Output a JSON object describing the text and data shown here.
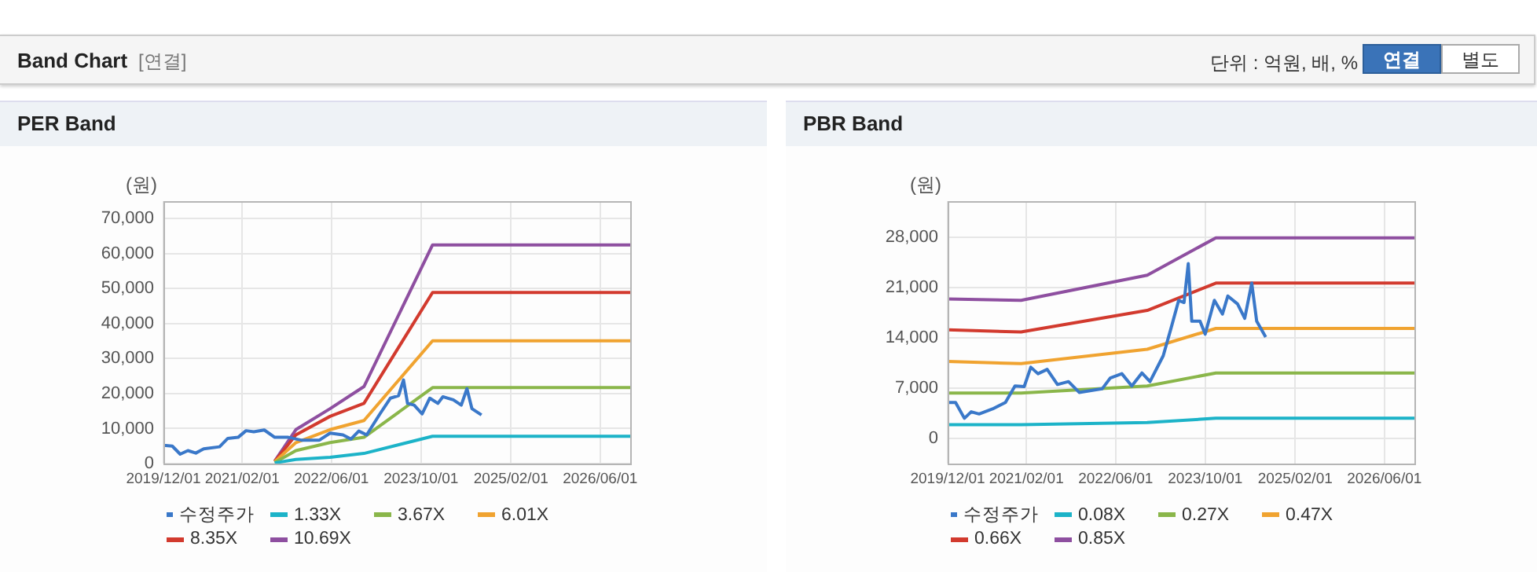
{
  "chart_data": [
    {
      "type": "other",
      "title": "Band Chart",
      "annotations": [
        "[연결]",
        "단위 : 억원, 배, %",
        "연결",
        "별도"
      ]
    },
    {
      "type": "line",
      "title": "PER Band",
      "ylabel": "(원)",
      "xlim": [
        "2019-12-01",
        "2026-11-20"
      ],
      "ylim": [
        0,
        75000
      ],
      "xticks": [
        {
          "value": "2019-12-01",
          "label": "2019/12/01"
        },
        {
          "value": "2021-02-01",
          "label": "2021/02/01"
        },
        {
          "value": "2022-06-01",
          "label": "2022/06/01"
        },
        {
          "value": "2023-10-01",
          "label": "2023/10/01"
        },
        {
          "value": "2025-02-01",
          "label": "2025/02/01"
        },
        {
          "value": "2026-06-01",
          "label": "2026/06/01"
        }
      ],
      "yticks": [
        0,
        {
          "value": 10000,
          "label": "10,000"
        },
        {
          "value": 20000,
          "label": "20,000"
        },
        {
          "value": 30000,
          "label": "30,000"
        },
        {
          "value": 40000,
          "label": "40,000"
        },
        {
          "value": 50000,
          "label": "50,000"
        },
        {
          "value": 60000,
          "label": "60,000"
        },
        {
          "value": 70000,
          "label": "70,000"
        }
      ],
      "grid": true,
      "legend": "bottom",
      "marker": "none",
      "line_style": "solid",
      "series": [
        {
          "name": "수정주가",
          "color": "#3a78c9",
          "x": [
            "2019-12-01",
            "2020-01-18",
            "2020-03-01",
            "2020-04-12",
            "2020-05-25",
            "2020-07-07",
            "2020-10-01",
            "2020-11-15",
            "2021-01-10",
            "2021-02-22",
            "2021-04-05",
            "2021-06-01",
            "2021-07-28",
            "2021-10-10",
            "2021-12-18",
            "2022-03-28",
            "2022-05-25",
            "2022-08-03",
            "2022-09-15",
            "2022-10-28",
            "2022-12-10",
            "2023-02-20",
            "2023-04-18",
            "2023-06-01",
            "2023-06-28",
            "2023-07-20",
            "2023-08-25",
            "2023-10-07",
            "2023-11-18",
            "2024-01-01",
            "2024-01-28",
            "2024-03-25",
            "2024-05-07",
            "2024-06-07",
            "2024-07-04",
            "2024-08-25"
          ],
          "values": [
            5200,
            5000,
            2700,
            3700,
            3000,
            4200,
            4800,
            7200,
            7500,
            9400,
            9100,
            9600,
            7500,
            7500,
            6700,
            6700,
            8700,
            8200,
            7000,
            9300,
            8200,
            14200,
            18700,
            19400,
            23900,
            17200,
            16700,
            14200,
            18700,
            17200,
            19100,
            18200,
            16700,
            21400,
            15700,
            13900
          ]
        },
        {
          "name": "1.33X",
          "color": "#1cb3c8",
          "x": [
            "2021-07-28",
            "2021-11-20",
            "2022-05-25",
            "2022-11-25",
            "2023-12-03",
            "2026-11-20"
          ],
          "values": [
            200,
            1200,
            1800,
            2900,
            7800,
            7800
          ]
        },
        {
          "name": "3.67X",
          "color": "#8ab64a",
          "x": [
            "2021-07-28",
            "2021-11-20",
            "2022-05-25",
            "2022-11-25",
            "2023-12-03",
            "2026-11-20"
          ],
          "values": [
            300,
            3700,
            6000,
            7500,
            21700,
            21700
          ]
        },
        {
          "name": "6.01X",
          "color": "#f0a330",
          "x": [
            "2021-07-28",
            "2021-11-20",
            "2022-05-25",
            "2022-11-25",
            "2023-12-03",
            "2026-11-20"
          ],
          "values": [
            500,
            6000,
            9700,
            12300,
            35100,
            35100
          ]
        },
        {
          "name": "8.35X",
          "color": "#d23a2e",
          "x": [
            "2021-07-28",
            "2021-11-20",
            "2022-05-25",
            "2022-11-25",
            "2023-12-03",
            "2026-11-20"
          ],
          "values": [
            600,
            8200,
            13500,
            17200,
            48900,
            48900
          ]
        },
        {
          "name": "10.69X",
          "color": "#8e4fa0",
          "x": [
            "2021-07-28",
            "2021-11-20",
            "2022-05-25",
            "2022-11-25",
            "2023-12-03",
            "2026-11-20"
          ],
          "values": [
            700,
            9700,
            15700,
            22000,
            62500,
            62500
          ]
        }
      ]
    },
    {
      "type": "line",
      "title": "PBR Band",
      "ylabel": "(원)",
      "xlim": [
        "2019-12-01",
        "2026-11-20"
      ],
      "ylim": [
        -3500,
        33000
      ],
      "xticks": [
        {
          "value": "2019-12-01",
          "label": "2019/12/01"
        },
        {
          "value": "2021-02-01",
          "label": "2021/02/01"
        },
        {
          "value": "2022-06-01",
          "label": "2022/06/01"
        },
        {
          "value": "2023-10-01",
          "label": "2023/10/01"
        },
        {
          "value": "2025-02-01",
          "label": "2025/02/01"
        },
        {
          "value": "2026-06-01",
          "label": "2026/06/01"
        }
      ],
      "yticks": [
        0,
        {
          "value": 7000,
          "label": "7,000"
        },
        {
          "value": 14000,
          "label": "14,000"
        },
        {
          "value": 21000,
          "label": "21,000"
        },
        {
          "value": 28000,
          "label": "28,000"
        }
      ],
      "grid": true,
      "legend": "bottom",
      "marker": "none",
      "line_style": "solid",
      "series": [
        {
          "name": "수정주가",
          "color": "#3a78c9",
          "x": [
            "2019-12-01",
            "2020-01-13",
            "2020-03-01",
            "2020-04-07",
            "2020-05-20",
            "2020-08-01",
            "2020-10-10",
            "2020-12-01",
            "2021-01-20",
            "2021-02-25",
            "2021-04-05",
            "2021-05-25",
            "2021-07-20",
            "2021-09-18",
            "2021-11-15",
            "2022-03-20",
            "2022-05-03",
            "2022-07-05",
            "2022-08-28",
            "2022-10-22",
            "2022-12-05",
            "2023-02-15",
            "2023-03-28",
            "2023-05-10",
            "2023-06-08",
            "2023-07-01",
            "2023-07-20",
            "2023-09-03",
            "2023-10-01",
            "2023-11-20",
            "2024-01-03",
            "2024-02-01",
            "2024-03-25",
            "2024-05-03",
            "2024-06-10",
            "2024-07-07",
            "2024-08-25"
          ],
          "values": [
            5000,
            5000,
            2800,
            3700,
            3400,
            4100,
            5000,
            7300,
            7200,
            9900,
            9000,
            9600,
            7500,
            7900,
            6400,
            6900,
            8400,
            9000,
            7300,
            9100,
            7900,
            11500,
            15200,
            19200,
            18900,
            24300,
            16300,
            16300,
            14500,
            19200,
            17300,
            19800,
            18700,
            16700,
            21600,
            16300,
            14100
          ]
        },
        {
          "name": "0.08X",
          "color": "#1cb3c8",
          "x": [
            "2019-12-01",
            "2021-01-03",
            "2022-11-20",
            "2023-11-28",
            "2026-11-20"
          ],
          "values": [
            1900,
            1900,
            2200,
            2800,
            2800
          ]
        },
        {
          "name": "0.27X",
          "color": "#8ab64a",
          "x": [
            "2019-12-01",
            "2021-01-03",
            "2022-11-20",
            "2023-11-28",
            "2026-11-20"
          ],
          "values": [
            6300,
            6300,
            7300,
            9100,
            9100
          ]
        },
        {
          "name": "0.47X",
          "color": "#f0a330",
          "x": [
            "2019-12-01",
            "2021-01-03",
            "2022-11-20",
            "2023-11-28",
            "2026-11-20"
          ],
          "values": [
            10700,
            10400,
            12400,
            15300,
            15300
          ]
        },
        {
          "name": "0.66X",
          "color": "#d23a2e",
          "x": [
            "2019-12-01",
            "2021-01-03",
            "2022-11-20",
            "2023-11-28",
            "2026-11-20"
          ],
          "values": [
            15100,
            14800,
            17800,
            21600,
            21600
          ]
        },
        {
          "name": "0.85X",
          "color": "#8e4fa0",
          "x": [
            "2019-12-01",
            "2021-01-03",
            "2022-11-20",
            "2023-11-28",
            "2026-11-20"
          ],
          "values": [
            19400,
            19200,
            22700,
            27900,
            27900
          ]
        }
      ]
    }
  ]
}
